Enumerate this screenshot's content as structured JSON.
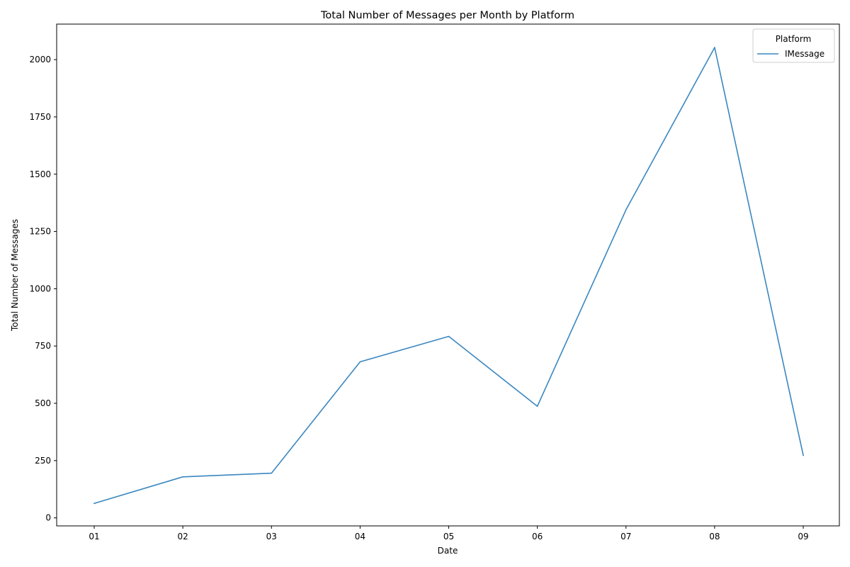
{
  "chart_data": {
    "type": "line",
    "title": "Total Number of Messages per Month by Platform",
    "xlabel": "Date",
    "ylabel": "Total Number of Messages",
    "categories": [
      "01",
      "02",
      "03",
      "04",
      "05",
      "06",
      "07",
      "08",
      "09"
    ],
    "series": [
      {
        "name": "IMessage",
        "color": "#3a87c0",
        "values": [
          63,
          179,
          195,
          681,
          792,
          487,
          1345,
          2053,
          273
        ]
      }
    ],
    "ylim": [
      -35,
      2155
    ],
    "yticks": [
      0,
      250,
      500,
      750,
      1000,
      1250,
      1500,
      1750,
      2000
    ],
    "grid": false,
    "legend": {
      "title": "Platform",
      "position": "top-right"
    }
  }
}
